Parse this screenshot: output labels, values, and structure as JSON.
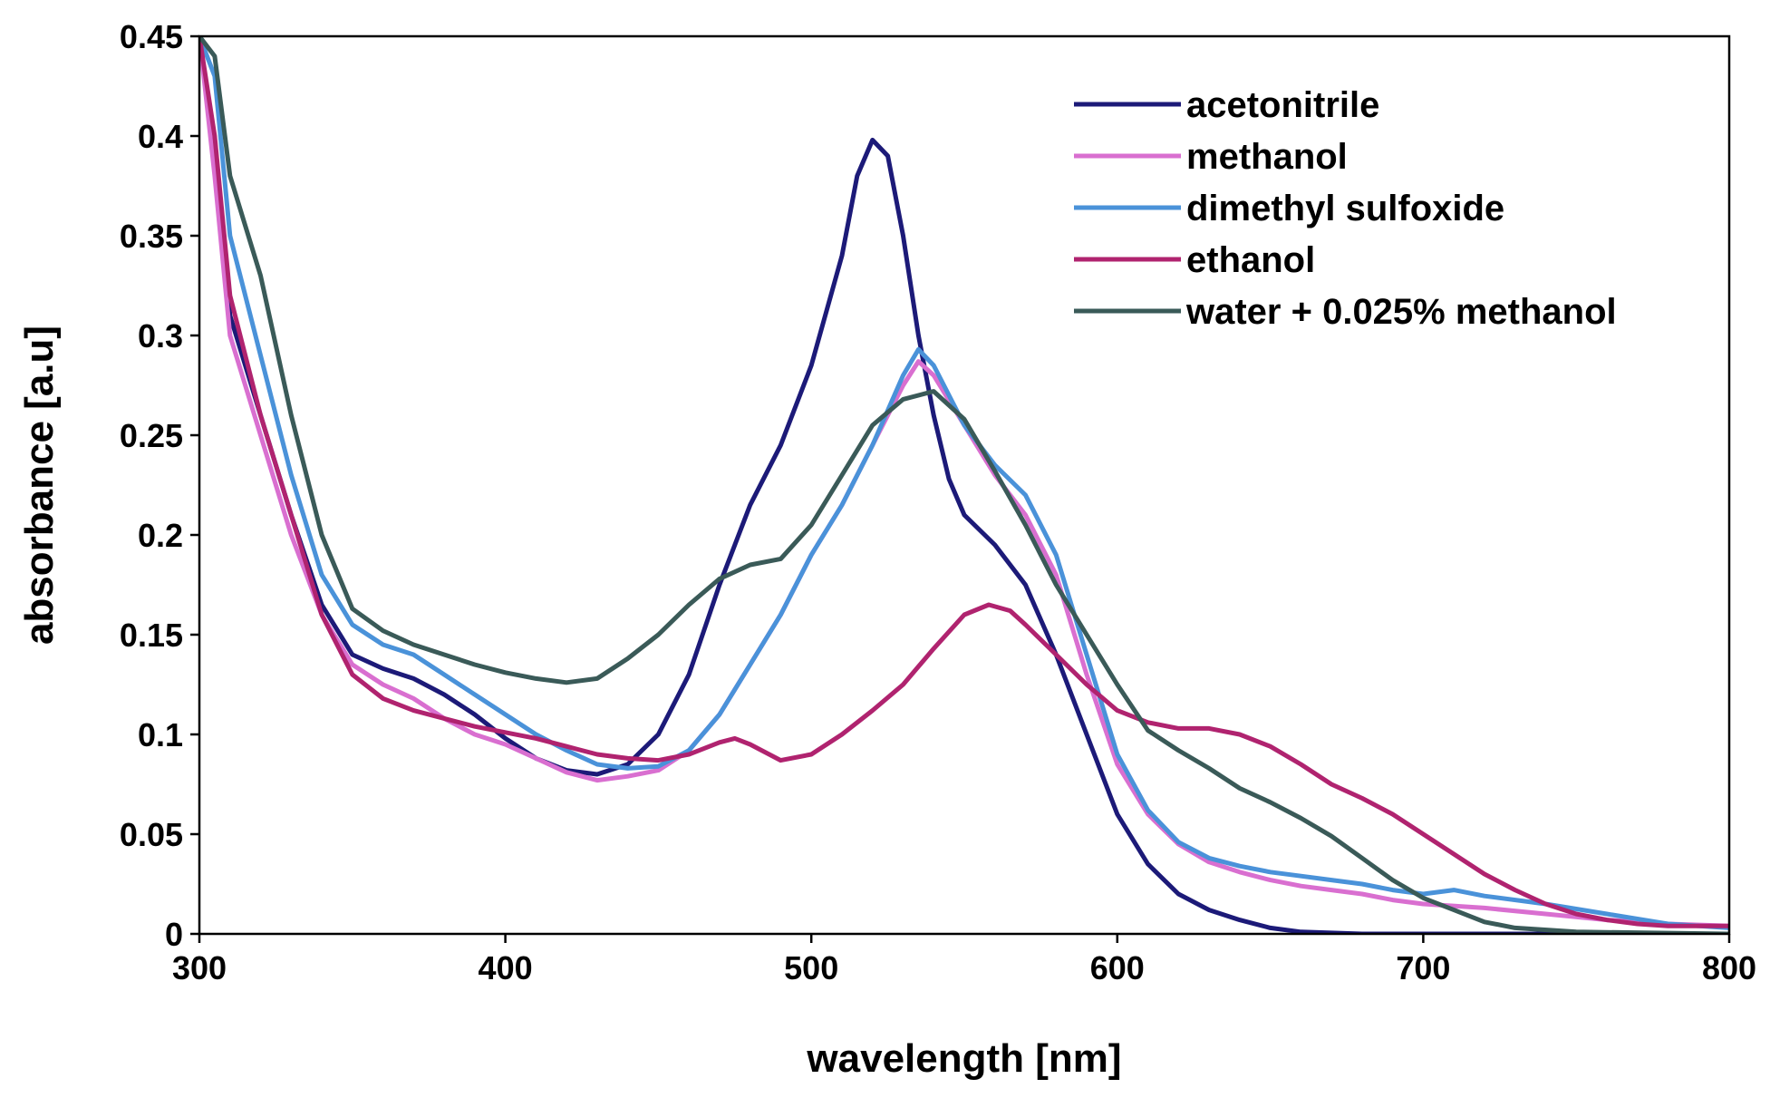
{
  "chart_data": {
    "type": "line",
    "title": "",
    "xlabel": "wavelength [nm]",
    "ylabel": "absorbance [a.u]",
    "xlim": [
      300,
      800
    ],
    "ylim": [
      0,
      0.45
    ],
    "x_ticks": [
      300,
      400,
      500,
      600,
      700,
      800
    ],
    "y_ticks": [
      0,
      0.05,
      0.1,
      0.15,
      0.2,
      0.25,
      0.3,
      0.35,
      0.4,
      0.45
    ],
    "x_tick_labels": [
      "300",
      "400",
      "500",
      "600",
      "700",
      "800"
    ],
    "y_tick_labels": [
      "0",
      "0.05",
      "0.1",
      "0.15",
      "0.2",
      "0.25",
      "0.3",
      "0.35",
      "0.4",
      "0.45"
    ],
    "grid": false,
    "legend_position": "top-right",
    "series": [
      {
        "name": "acetonitrile",
        "color": "#1c1a78",
        "points": [
          [
            300,
            0.45
          ],
          [
            305,
            0.39
          ],
          [
            310,
            0.31
          ],
          [
            320,
            0.26
          ],
          [
            330,
            0.21
          ],
          [
            340,
            0.165
          ],
          [
            350,
            0.14
          ],
          [
            360,
            0.133
          ],
          [
            370,
            0.128
          ],
          [
            380,
            0.12
          ],
          [
            390,
            0.11
          ],
          [
            400,
            0.098
          ],
          [
            410,
            0.088
          ],
          [
            420,
            0.082
          ],
          [
            430,
            0.08
          ],
          [
            440,
            0.085
          ],
          [
            450,
            0.1
          ],
          [
            460,
            0.13
          ],
          [
            470,
            0.175
          ],
          [
            480,
            0.215
          ],
          [
            490,
            0.245
          ],
          [
            500,
            0.285
          ],
          [
            510,
            0.34
          ],
          [
            515,
            0.38
          ],
          [
            520,
            0.398
          ],
          [
            525,
            0.39
          ],
          [
            530,
            0.35
          ],
          [
            535,
            0.3
          ],
          [
            540,
            0.26
          ],
          [
            545,
            0.228
          ],
          [
            550,
            0.21
          ],
          [
            560,
            0.195
          ],
          [
            570,
            0.175
          ],
          [
            580,
            0.14
          ],
          [
            590,
            0.1
          ],
          [
            600,
            0.06
          ],
          [
            610,
            0.035
          ],
          [
            620,
            0.02
          ],
          [
            630,
            0.012
          ],
          [
            640,
            0.007
          ],
          [
            650,
            0.003
          ],
          [
            660,
            0.001
          ],
          [
            680,
            0
          ],
          [
            700,
            0
          ],
          [
            800,
            0
          ]
        ]
      },
      {
        "name": "methanol",
        "color": "#d96fd0",
        "points": [
          [
            300,
            0.45
          ],
          [
            305,
            0.38
          ],
          [
            310,
            0.3
          ],
          [
            320,
            0.25
          ],
          [
            330,
            0.2
          ],
          [
            340,
            0.16
          ],
          [
            350,
            0.135
          ],
          [
            360,
            0.125
          ],
          [
            370,
            0.118
          ],
          [
            380,
            0.108
          ],
          [
            390,
            0.1
          ],
          [
            400,
            0.095
          ],
          [
            410,
            0.088
          ],
          [
            420,
            0.081
          ],
          [
            430,
            0.077
          ],
          [
            440,
            0.079
          ],
          [
            450,
            0.082
          ],
          [
            460,
            0.092
          ],
          [
            470,
            0.11
          ],
          [
            480,
            0.135
          ],
          [
            490,
            0.16
          ],
          [
            500,
            0.19
          ],
          [
            510,
            0.215
          ],
          [
            520,
            0.245
          ],
          [
            530,
            0.275
          ],
          [
            535,
            0.287
          ],
          [
            540,
            0.28
          ],
          [
            550,
            0.255
          ],
          [
            560,
            0.23
          ],
          [
            570,
            0.21
          ],
          [
            580,
            0.18
          ],
          [
            590,
            0.13
          ],
          [
            600,
            0.085
          ],
          [
            610,
            0.06
          ],
          [
            620,
            0.045
          ],
          [
            630,
            0.036
          ],
          [
            640,
            0.031
          ],
          [
            650,
            0.027
          ],
          [
            660,
            0.024
          ],
          [
            670,
            0.022
          ],
          [
            680,
            0.02
          ],
          [
            690,
            0.017
          ],
          [
            700,
            0.015
          ],
          [
            720,
            0.013
          ],
          [
            740,
            0.01
          ],
          [
            760,
            0.007
          ],
          [
            780,
            0.005
          ],
          [
            800,
            0.004
          ]
        ]
      },
      {
        "name": "dimethyl sulfoxide",
        "color": "#4a92d9",
        "points": [
          [
            300,
            0.45
          ],
          [
            305,
            0.43
          ],
          [
            310,
            0.35
          ],
          [
            320,
            0.29
          ],
          [
            330,
            0.23
          ],
          [
            340,
            0.18
          ],
          [
            350,
            0.155
          ],
          [
            360,
            0.145
          ],
          [
            370,
            0.14
          ],
          [
            380,
            0.13
          ],
          [
            390,
            0.12
          ],
          [
            400,
            0.11
          ],
          [
            410,
            0.1
          ],
          [
            420,
            0.092
          ],
          [
            430,
            0.085
          ],
          [
            440,
            0.083
          ],
          [
            450,
            0.084
          ],
          [
            460,
            0.092
          ],
          [
            470,
            0.11
          ],
          [
            480,
            0.135
          ],
          [
            490,
            0.16
          ],
          [
            500,
            0.19
          ],
          [
            510,
            0.215
          ],
          [
            520,
            0.245
          ],
          [
            530,
            0.28
          ],
          [
            535,
            0.293
          ],
          [
            540,
            0.285
          ],
          [
            550,
            0.255
          ],
          [
            560,
            0.235
          ],
          [
            570,
            0.22
          ],
          [
            580,
            0.19
          ],
          [
            590,
            0.14
          ],
          [
            600,
            0.09
          ],
          [
            610,
            0.062
          ],
          [
            620,
            0.046
          ],
          [
            630,
            0.038
          ],
          [
            640,
            0.034
          ],
          [
            650,
            0.031
          ],
          [
            660,
            0.029
          ],
          [
            670,
            0.027
          ],
          [
            680,
            0.025
          ],
          [
            690,
            0.022
          ],
          [
            700,
            0.02
          ],
          [
            710,
            0.022
          ],
          [
            720,
            0.019
          ],
          [
            740,
            0.015
          ],
          [
            760,
            0.01
          ],
          [
            780,
            0.005
          ],
          [
            800,
            0.003
          ]
        ]
      },
      {
        "name": "ethanol",
        "color": "#b0236f",
        "points": [
          [
            300,
            0.45
          ],
          [
            305,
            0.4
          ],
          [
            310,
            0.32
          ],
          [
            320,
            0.26
          ],
          [
            330,
            0.21
          ],
          [
            340,
            0.16
          ],
          [
            350,
            0.13
          ],
          [
            360,
            0.118
          ],
          [
            370,
            0.112
          ],
          [
            380,
            0.108
          ],
          [
            390,
            0.104
          ],
          [
            400,
            0.101
          ],
          [
            410,
            0.098
          ],
          [
            420,
            0.094
          ],
          [
            430,
            0.09
          ],
          [
            440,
            0.088
          ],
          [
            450,
            0.087
          ],
          [
            460,
            0.09
          ],
          [
            470,
            0.096
          ],
          [
            475,
            0.098
          ],
          [
            480,
            0.095
          ],
          [
            490,
            0.087
          ],
          [
            500,
            0.09
          ],
          [
            510,
            0.1
          ],
          [
            520,
            0.112
          ],
          [
            530,
            0.125
          ],
          [
            540,
            0.143
          ],
          [
            550,
            0.16
          ],
          [
            558,
            0.165
          ],
          [
            565,
            0.162
          ],
          [
            570,
            0.155
          ],
          [
            580,
            0.14
          ],
          [
            590,
            0.125
          ],
          [
            600,
            0.112
          ],
          [
            610,
            0.106
          ],
          [
            620,
            0.103
          ],
          [
            630,
            0.103
          ],
          [
            640,
            0.1
          ],
          [
            650,
            0.094
          ],
          [
            660,
            0.085
          ],
          [
            670,
            0.075
          ],
          [
            680,
            0.068
          ],
          [
            690,
            0.06
          ],
          [
            700,
            0.05
          ],
          [
            710,
            0.04
          ],
          [
            720,
            0.03
          ],
          [
            730,
            0.022
          ],
          [
            740,
            0.015
          ],
          [
            750,
            0.01
          ],
          [
            760,
            0.007
          ],
          [
            770,
            0.005
          ],
          [
            780,
            0.004
          ],
          [
            800,
            0.004
          ]
        ]
      },
      {
        "name": "water + 0.025% methanol",
        "color": "#3a5a58",
        "points": [
          [
            300,
            0.45
          ],
          [
            305,
            0.44
          ],
          [
            310,
            0.38
          ],
          [
            320,
            0.33
          ],
          [
            330,
            0.26
          ],
          [
            340,
            0.2
          ],
          [
            350,
            0.163
          ],
          [
            360,
            0.152
          ],
          [
            370,
            0.145
          ],
          [
            380,
            0.14
          ],
          [
            390,
            0.135
          ],
          [
            400,
            0.131
          ],
          [
            410,
            0.128
          ],
          [
            420,
            0.126
          ],
          [
            430,
            0.128
          ],
          [
            440,
            0.138
          ],
          [
            450,
            0.15
          ],
          [
            460,
            0.165
          ],
          [
            470,
            0.178
          ],
          [
            480,
            0.185
          ],
          [
            490,
            0.188
          ],
          [
            500,
            0.205
          ],
          [
            510,
            0.23
          ],
          [
            520,
            0.255
          ],
          [
            530,
            0.268
          ],
          [
            540,
            0.272
          ],
          [
            550,
            0.258
          ],
          [
            560,
            0.232
          ],
          [
            570,
            0.205
          ],
          [
            580,
            0.175
          ],
          [
            590,
            0.15
          ],
          [
            600,
            0.125
          ],
          [
            610,
            0.102
          ],
          [
            620,
            0.092
          ],
          [
            630,
            0.083
          ],
          [
            640,
            0.073
          ],
          [
            650,
            0.066
          ],
          [
            660,
            0.058
          ],
          [
            670,
            0.049
          ],
          [
            680,
            0.038
          ],
          [
            690,
            0.027
          ],
          [
            700,
            0.018
          ],
          [
            710,
            0.012
          ],
          [
            720,
            0.006
          ],
          [
            730,
            0.003
          ],
          [
            750,
            0.001
          ],
          [
            800,
            0
          ]
        ]
      }
    ]
  }
}
